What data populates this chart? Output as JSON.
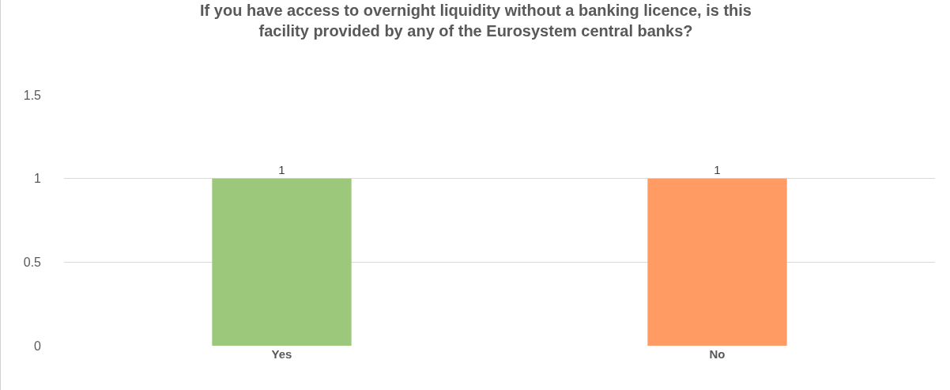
{
  "chart_data": {
    "type": "bar",
    "title": "If you have access to overnight liquidity without a banking licence, is this\nfacility provided by any of the Eurosystem central banks?",
    "categories": [
      "Yes",
      "No"
    ],
    "values": [
      1,
      1
    ],
    "colors": [
      "#9bc87a",
      "#ff9b63"
    ],
    "ylim": [
      0,
      1.5
    ],
    "yticks": [
      0,
      0.5,
      1,
      1.5
    ],
    "grid": true,
    "data_labels": true
  }
}
